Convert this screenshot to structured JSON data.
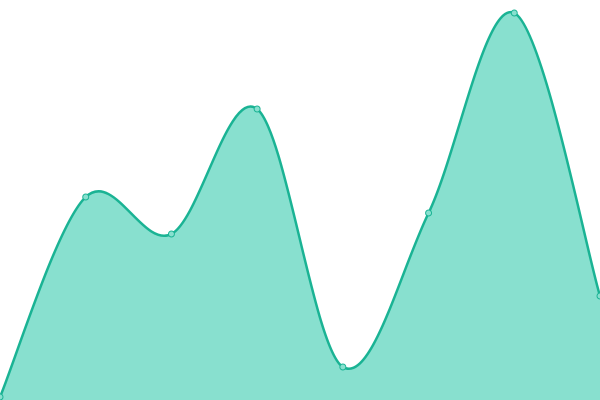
{
  "chart_data": {
    "type": "area",
    "categories": [
      null,
      null,
      null,
      null,
      null,
      null,
      null,
      null
    ],
    "series": [
      {
        "color": "#1ab394",
        "values": [
          3,
          203,
          166,
          291,
          33,
          187,
          387,
          104
        ]
      }
    ],
    "ylim": [
      0,
      400
    ],
    "fill": "#88e0cf",
    "smooth": true,
    "markers": true
  }
}
